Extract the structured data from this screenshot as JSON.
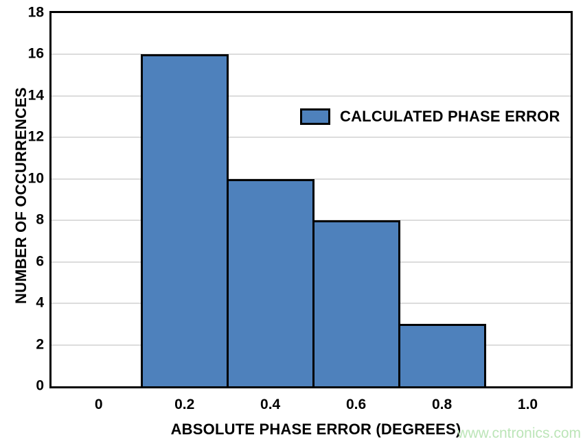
{
  "chart_data": {
    "type": "bar",
    "title": "",
    "xlabel": "ABSOLUTE PHASE ERROR (DEGREES)",
    "ylabel": "NUMBER OF OCCURRENCES",
    "bars": [
      {
        "x_start": 0.1,
        "x_end": 0.3,
        "value": 16
      },
      {
        "x_start": 0.3,
        "x_end": 0.5,
        "value": 10
      },
      {
        "x_start": 0.5,
        "x_end": 0.7,
        "value": 8
      },
      {
        "x_start": 0.7,
        "x_end": 0.9,
        "value": 3
      }
    ],
    "x_tick_values": [
      0,
      0.2,
      0.4,
      0.6,
      0.8,
      1.0
    ],
    "x_tick_labels": [
      "0",
      "0.2",
      "0.4",
      "0.6",
      "0.8",
      "1.0"
    ],
    "y_tick_values": [
      0,
      2,
      4,
      6,
      8,
      10,
      12,
      14,
      16,
      18
    ],
    "y_tick_labels": [
      "0",
      "2",
      "4",
      "6",
      "8",
      "10",
      "12",
      "14",
      "16",
      "18"
    ],
    "xlim": [
      -0.11,
      1.1
    ],
    "ylim": [
      0,
      18
    ],
    "grid": {
      "horizontal": true,
      "vertical": false
    },
    "legend": [
      {
        "label": "CALCULATED PHASE ERROR"
      }
    ],
    "legend_position": "inside-upper-right",
    "colors": {
      "bar_fill": "#4E81BC",
      "bar_border": "#000000",
      "grid": "#DCDCDC",
      "frame": "#000000",
      "background": "#FFFFFF",
      "text": "#000000"
    }
  },
  "watermark": {
    "text": "www.cntronics.com",
    "color": "#BCE5B8"
  }
}
